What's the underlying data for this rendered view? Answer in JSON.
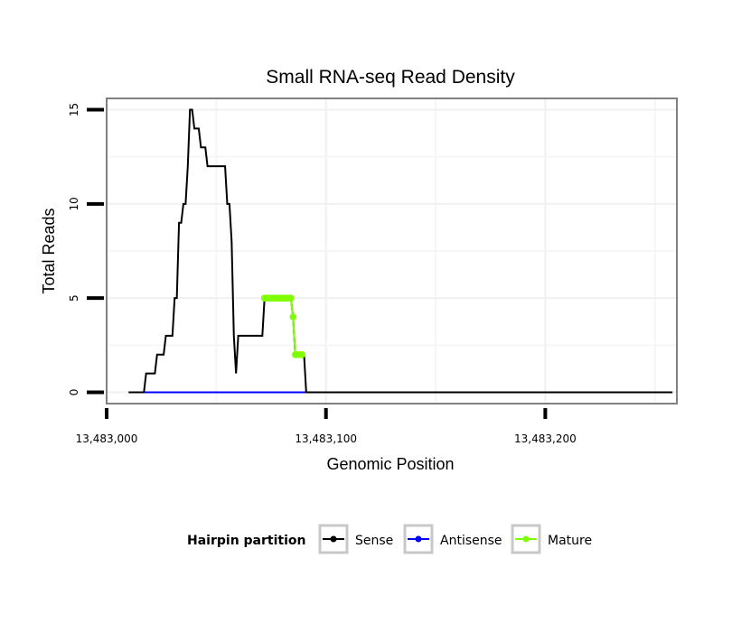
{
  "chart_data": {
    "type": "line",
    "title": "Small RNA-seq Read Density",
    "xlabel": "Genomic Position",
    "ylabel": "Total Reads",
    "xlim": [
      13483000,
      13483260
    ],
    "ylim": [
      -0.6,
      15.6
    ],
    "x_ticks": [
      13483000,
      13483100,
      13483200
    ],
    "x_tick_labels": [
      "13,483,000",
      "13,483,100",
      "13,483,200"
    ],
    "y_ticks": [
      0,
      5,
      10,
      15
    ],
    "y_tick_labels": [
      "0",
      "5",
      "10",
      "15"
    ],
    "grid": true,
    "legend_position": "bottom",
    "legend_title": "Hairpin partition",
    "series": [
      {
        "name": "Sense",
        "color": "#000000",
        "x": [
          13483010,
          13483017,
          13483018,
          13483022,
          13483023,
          13483026,
          13483027,
          13483029,
          13483030,
          13483031,
          13483032,
          13483033,
          13483034,
          13483035,
          13483036,
          13483037,
          13483038,
          13483039,
          13483040,
          13483041,
          13483042,
          13483043,
          13483044,
          13483045,
          13483046,
          13483047,
          13483048,
          13483049,
          13483050,
          13483051,
          13483052,
          13483053,
          13483054,
          13483055,
          13483056,
          13483057,
          13483058,
          13483059,
          13483060,
          13483061,
          13483062,
          13483063,
          13483064,
          13483065,
          13483066,
          13483067,
          13483068,
          13483069,
          13483070,
          13483071,
          13483072,
          13483083,
          13483084,
          13483085,
          13483086,
          13483090,
          13483091,
          13483258
        ],
        "values": [
          0,
          0,
          1,
          1,
          2,
          2,
          3,
          3,
          3,
          5,
          5,
          9,
          9,
          10,
          10,
          12,
          15,
          15,
          14,
          14,
          14,
          13,
          13,
          13,
          12,
          12,
          12,
          12,
          12,
          12,
          12,
          12,
          12,
          10,
          10,
          8,
          3,
          1,
          3,
          3,
          3,
          3,
          3,
          3,
          3,
          3,
          3,
          3,
          3,
          3,
          5,
          5,
          5,
          4,
          2,
          2,
          0,
          0
        ]
      },
      {
        "name": "Antisense",
        "color": "#0000ff",
        "x": [
          13483017,
          13483091
        ],
        "values": [
          0,
          0
        ]
      },
      {
        "name": "Mature",
        "color": "#7fff00",
        "x": [
          13483072,
          13483073,
          13483074,
          13483075,
          13483076,
          13483077,
          13483078,
          13483079,
          13483080,
          13483081,
          13483082,
          13483083,
          13483084,
          13483085,
          13483086,
          13483087,
          13483088,
          13483089
        ],
        "values": [
          5,
          5,
          5,
          5,
          5,
          5,
          5,
          5,
          5,
          5,
          5,
          5,
          5,
          4,
          2,
          2,
          2,
          2
        ]
      }
    ]
  }
}
